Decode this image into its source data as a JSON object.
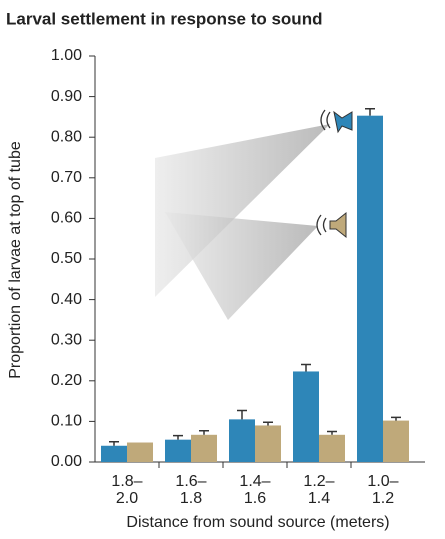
{
  "chart_data": {
    "type": "bar",
    "title": "Larval settlement in response to sound",
    "y_label": "Proportion of larvae at top of tube",
    "x_label": "Distance from sound source (meters)",
    "categories": [
      "1.8–\n2.0",
      "1.6–\n1.8",
      "1.4–\n1.6",
      "1.2–\n1.4",
      "1.0–\n1.2"
    ],
    "series": [
      {
        "color": "#2e86b8",
        "values": [
          0.04,
          0.055,
          0.105,
          0.223,
          0.853
        ],
        "errors": [
          0.01,
          0.01,
          0.022,
          0.017,
          0.017
        ]
      },
      {
        "color": "#bfa97a",
        "values": [
          0.048,
          0.067,
          0.09,
          0.067,
          0.102
        ],
        "errors": [
          null,
          0.01,
          0.008,
          0.008,
          0.008
        ]
      }
    ],
    "ylim": [
      0,
      1
    ],
    "yticks": [
      {
        "value": 0,
        "label": "0.00"
      },
      {
        "value": 0.1,
        "label": "0.10"
      },
      {
        "value": 0.2,
        "label": "0.20"
      },
      {
        "value": 0.3,
        "label": "0.30"
      },
      {
        "value": 0.4,
        "label": "0.40"
      },
      {
        "value": 0.5,
        "label": "0.50"
      },
      {
        "value": 0.6,
        "label": "0.60"
      },
      {
        "value": 0.7,
        "label": "0.70"
      },
      {
        "value": 0.8,
        "label": "0.80"
      },
      {
        "value": 0.9,
        "label": "0.90"
      },
      {
        "value": 1,
        "label": "1.00"
      }
    ]
  }
}
